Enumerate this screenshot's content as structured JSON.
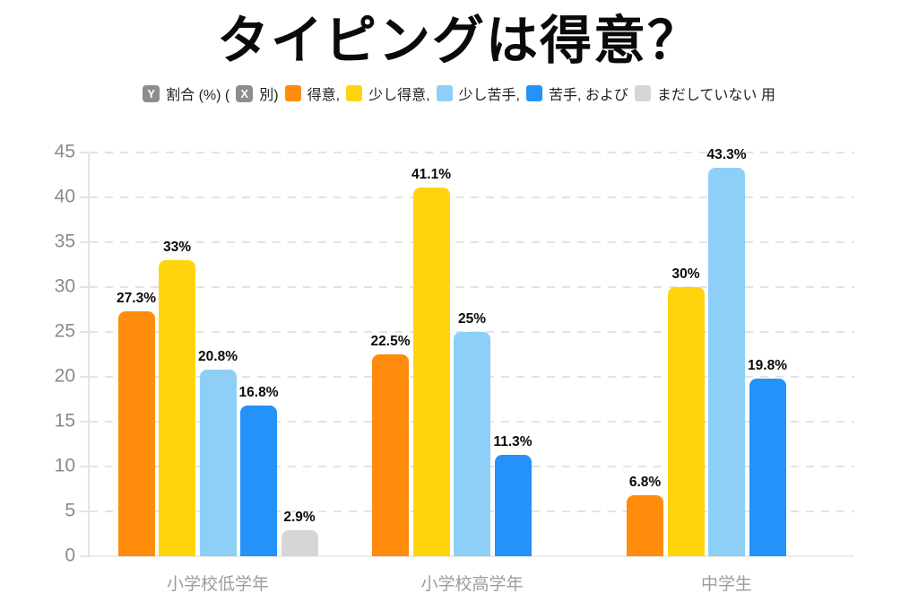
{
  "page": {
    "background": "#ffffff"
  },
  "title": "タイピングは得意？",
  "legend": {
    "badge_color": "#8d8d8d",
    "y_axis_badge": "Y",
    "prefix_text": "割合 (%) (",
    "x_axis_badge": "X",
    "suffix_text": "別)",
    "items": [
      {
        "label": "得意,",
        "color": "#ff8c0d"
      },
      {
        "label": "少し得意,",
        "color": "#ffd40d"
      },
      {
        "label": "少し苦手,",
        "color": "#8dcff6"
      },
      {
        "label": "苦手, および",
        "color": "#2492f8"
      },
      {
        "label": "まだしていない 用",
        "color": "#d6d6d6"
      }
    ]
  },
  "chart_data": {
    "type": "bar",
    "title": "タイピングは得意？",
    "ylabel": "割合 (%)",
    "xlabel": "別",
    "categories": [
      "小学校低学年",
      "小学校高学年",
      "中学生"
    ],
    "series": [
      {
        "name": "得意",
        "color": "#ff8c0d",
        "values": [
          27.3,
          22.5,
          6.8
        ],
        "value_labels": [
          "27.3%",
          "22.5%",
          "6.8%"
        ]
      },
      {
        "name": "少し得意",
        "color": "#ffd40d",
        "values": [
          33,
          41.1,
          30
        ],
        "value_labels": [
          "33%",
          "41.1%",
          "30%"
        ]
      },
      {
        "name": "少し苦手",
        "color": "#8dcff6",
        "values": [
          20.8,
          25,
          43.3
        ],
        "value_labels": [
          "20.8%",
          "25%",
          "43.3%"
        ]
      },
      {
        "name": "苦手",
        "color": "#2492f8",
        "values": [
          16.8,
          11.3,
          19.8
        ],
        "value_labels": [
          "16.8%",
          "11.3%",
          "19.8%"
        ]
      },
      {
        "name": "まだしていない",
        "color": "#d6d6d6",
        "values": [
          2.9,
          null,
          null
        ],
        "value_labels": [
          "2.9%",
          null,
          null
        ]
      }
    ],
    "ylim": [
      0,
      45
    ],
    "yticks": [
      0,
      5,
      10,
      15,
      20,
      25,
      30,
      35,
      40,
      45
    ],
    "grid": "dashed-horizontal",
    "legend_position": "top",
    "axis_text_color": "#8a8a8a",
    "value_label_color": "#0a0a0a"
  }
}
